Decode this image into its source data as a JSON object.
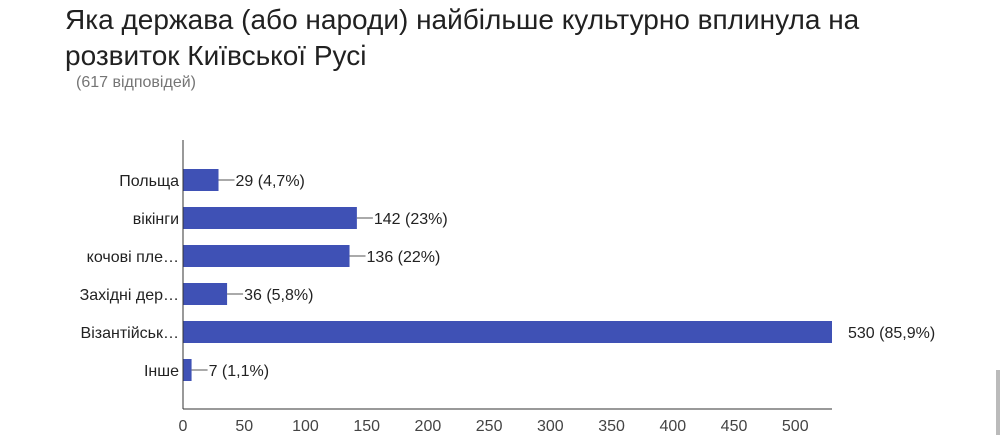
{
  "title": "Яка держава (або народи) найбільше культурно вплинула на розвиток Київської Русі",
  "subtitle": "(617 відповідей)",
  "chart_data": {
    "type": "bar",
    "orientation": "horizontal",
    "categories": [
      "Польща",
      "вікінги",
      "кочові пле…",
      "Західні дер…",
      "Візантійськ…",
      "Інше"
    ],
    "values": [
      29,
      142,
      136,
      36,
      530,
      7
    ],
    "data_labels": [
      "29 (4,7%)",
      "142 (23%)",
      "136 (22%)",
      "36 (5,8%)",
      "530 (85,9%)",
      "7 (1,1%)"
    ],
    "xlim": [
      0,
      530
    ],
    "xticks": [
      0,
      50,
      100,
      150,
      200,
      250,
      300,
      350,
      400,
      450,
      500
    ],
    "grid": false,
    "bar_color": "#3f51b5"
  }
}
